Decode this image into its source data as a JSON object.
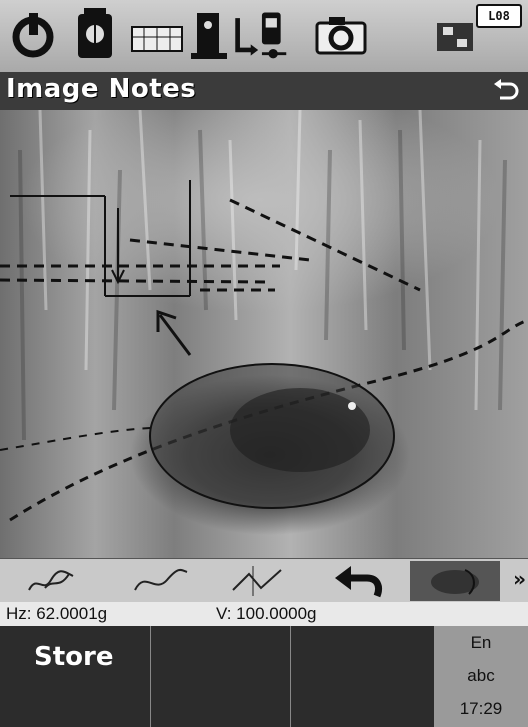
{
  "topbar": {
    "icons": [
      "power-icon",
      "instrument-icon",
      "keyboard-icon",
      "level-icon",
      "data-transfer-icon",
      "camera-icon",
      "memory-card-icon"
    ],
    "battery_label": "L08"
  },
  "titlebar": {
    "title": "Image Notes",
    "back_icon": "return-arrow-icon"
  },
  "image": {
    "description_icon": "sketch-annotation-canvas"
  },
  "tools": {
    "items": [
      "freehand-tool",
      "curve-tool",
      "line-tool",
      "undo-tool",
      "image-tool"
    ],
    "more_label": "»"
  },
  "readout": {
    "hz": "Hz: 62.0001g",
    "v": "V: 100.0000g"
  },
  "softkeys": {
    "store_label": "Store",
    "f2": "",
    "f3": ""
  },
  "status": {
    "lang": "En",
    "input_mode": "abc",
    "time": "17:29"
  },
  "colors": {
    "title_bg": "#3b3b3b",
    "softkey_bg": "#2c2c2c",
    "readout_bg": "#e9e9e9"
  }
}
